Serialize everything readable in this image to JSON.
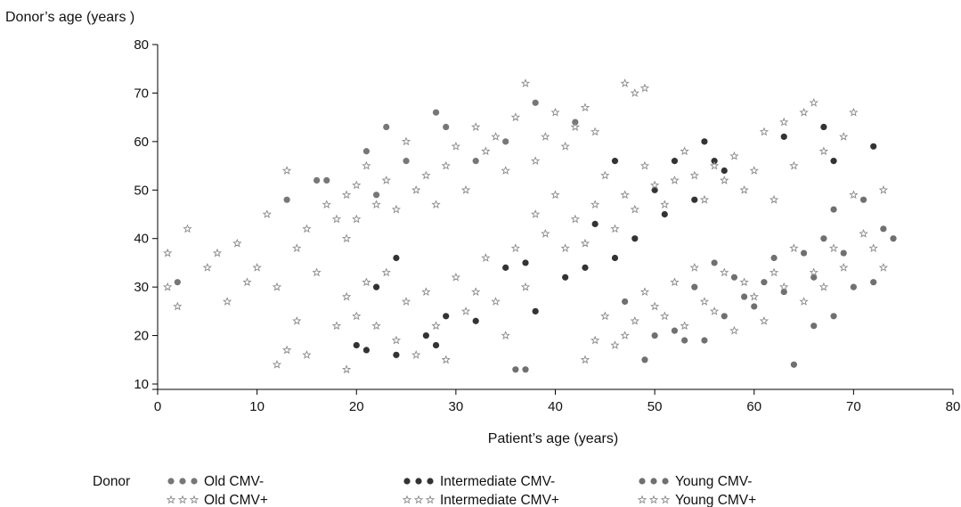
{
  "chart_data": {
    "type": "scatter",
    "title": "",
    "ylabel": "Donor’s age (years )",
    "xlabel": "Patient’s age (years)",
    "xlim": [
      0,
      80
    ],
    "ylim": [
      10,
      80
    ],
    "xticks": [
      0,
      10,
      20,
      30,
      40,
      50,
      60,
      70,
      80
    ],
    "yticks": [
      10,
      20,
      30,
      40,
      50,
      60,
      70,
      80
    ],
    "grid": false,
    "legend": {
      "placement": "bottom",
      "title": "Donor",
      "entries": [
        "Old CMV-",
        "Intermediate CMV-",
        "Young CMV-",
        "Old CMV+",
        "Intermediate CMV+",
        "Young CMV+"
      ]
    },
    "colors": {
      "old": "#777777",
      "intermediate": "#333333",
      "young": "#707070",
      "axis": "#000000"
    },
    "series": [
      {
        "name": "Old CMV-",
        "marker": "circle",
        "points": [
          [
            2,
            31
          ],
          [
            13,
            48
          ],
          [
            16,
            52
          ],
          [
            17,
            52
          ],
          [
            21,
            58
          ],
          [
            22,
            49
          ],
          [
            23,
            63
          ],
          [
            25,
            56
          ],
          [
            28,
            66
          ],
          [
            29,
            63
          ],
          [
            32,
            56
          ],
          [
            35,
            60
          ],
          [
            38,
            68
          ],
          [
            42,
            64
          ]
        ]
      },
      {
        "name": "Intermediate CMV-",
        "marker": "circle",
        "points": [
          [
            20,
            18
          ],
          [
            21,
            17
          ],
          [
            22,
            30
          ],
          [
            24,
            16
          ],
          [
            24,
            36
          ],
          [
            27,
            20
          ],
          [
            28,
            18
          ],
          [
            29,
            24
          ],
          [
            32,
            23
          ],
          [
            35,
            34
          ],
          [
            37,
            35
          ],
          [
            38,
            25
          ],
          [
            41,
            32
          ],
          [
            43,
            34
          ],
          [
            44,
            43
          ],
          [
            46,
            56
          ],
          [
            46,
            36
          ],
          [
            48,
            40
          ],
          [
            50,
            50
          ],
          [
            51,
            45
          ],
          [
            52,
            56
          ],
          [
            54,
            48
          ],
          [
            55,
            60
          ],
          [
            56,
            56
          ],
          [
            57,
            54
          ],
          [
            63,
            61
          ],
          [
            67,
            63
          ],
          [
            68,
            56
          ],
          [
            72,
            59
          ]
        ]
      },
      {
        "name": "Young CMV-",
        "marker": "circle",
        "points": [
          [
            36,
            13
          ],
          [
            37,
            13
          ],
          [
            47,
            27
          ],
          [
            49,
            15
          ],
          [
            50,
            20
          ],
          [
            52,
            21
          ],
          [
            53,
            19
          ],
          [
            54,
            30
          ],
          [
            55,
            19
          ],
          [
            56,
            35
          ],
          [
            57,
            24
          ],
          [
            58,
            32
          ],
          [
            59,
            28
          ],
          [
            60,
            26
          ],
          [
            61,
            31
          ],
          [
            62,
            36
          ],
          [
            63,
            29
          ],
          [
            64,
            14
          ],
          [
            65,
            37
          ],
          [
            66,
            22
          ],
          [
            66,
            32
          ],
          [
            67,
            40
          ],
          [
            68,
            24
          ],
          [
            68,
            46
          ],
          [
            69,
            37
          ],
          [
            70,
            30
          ],
          [
            71,
            48
          ],
          [
            72,
            31
          ],
          [
            73,
            42
          ],
          [
            74,
            40
          ]
        ]
      },
      {
        "name": "Old CMV+",
        "marker": "star",
        "points": [
          [
            1,
            37
          ],
          [
            1,
            30
          ],
          [
            2,
            26
          ],
          [
            3,
            42
          ],
          [
            5,
            34
          ],
          [
            6,
            37
          ],
          [
            7,
            27
          ],
          [
            8,
            39
          ],
          [
            9,
            31
          ],
          [
            10,
            34
          ],
          [
            11,
            45
          ],
          [
            12,
            30
          ],
          [
            13,
            54
          ],
          [
            14,
            38
          ],
          [
            15,
            42
          ],
          [
            16,
            33
          ],
          [
            17,
            47
          ],
          [
            18,
            44
          ],
          [
            19,
            40
          ],
          [
            19,
            49
          ],
          [
            20,
            51
          ],
          [
            20,
            44
          ],
          [
            21,
            55
          ],
          [
            22,
            47
          ],
          [
            23,
            52
          ],
          [
            24,
            46
          ],
          [
            25,
            60
          ],
          [
            26,
            50
          ],
          [
            27,
            53
          ],
          [
            28,
            47
          ],
          [
            29,
            55
          ],
          [
            30,
            59
          ],
          [
            31,
            50
          ],
          [
            32,
            63
          ],
          [
            33,
            58
          ],
          [
            34,
            61
          ],
          [
            35,
            54
          ],
          [
            36,
            65
          ],
          [
            37,
            72
          ],
          [
            38,
            56
          ],
          [
            39,
            61
          ],
          [
            40,
            66
          ],
          [
            41,
            59
          ],
          [
            42,
            63
          ],
          [
            43,
            67
          ],
          [
            44,
            62
          ],
          [
            47,
            72
          ],
          [
            48,
            70
          ],
          [
            49,
            71
          ]
        ]
      },
      {
        "name": "Intermediate CMV+",
        "marker": "star",
        "points": [
          [
            12,
            14
          ],
          [
            13,
            17
          ],
          [
            14,
            23
          ],
          [
            15,
            16
          ],
          [
            18,
            22
          ],
          [
            19,
            13
          ],
          [
            19,
            28
          ],
          [
            20,
            24
          ],
          [
            21,
            31
          ],
          [
            22,
            22
          ],
          [
            23,
            33
          ],
          [
            24,
            19
          ],
          [
            25,
            27
          ],
          [
            26,
            16
          ],
          [
            27,
            29
          ],
          [
            28,
            22
          ],
          [
            29,
            15
          ],
          [
            30,
            32
          ],
          [
            31,
            25
          ],
          [
            32,
            29
          ],
          [
            33,
            36
          ],
          [
            34,
            27
          ],
          [
            35,
            20
          ],
          [
            36,
            38
          ],
          [
            37,
            30
          ],
          [
            38,
            45
          ],
          [
            39,
            41
          ],
          [
            40,
            49
          ],
          [
            41,
            38
          ],
          [
            42,
            44
          ],
          [
            43,
            39
          ],
          [
            44,
            47
          ],
          [
            45,
            53
          ],
          [
            46,
            42
          ],
          [
            47,
            49
          ],
          [
            48,
            46
          ],
          [
            49,
            55
          ],
          [
            50,
            51
          ],
          [
            51,
            47
          ],
          [
            52,
            52
          ],
          [
            53,
            58
          ],
          [
            54,
            53
          ],
          [
            55,
            48
          ],
          [
            56,
            55
          ],
          [
            57,
            52
          ],
          [
            58,
            57
          ],
          [
            59,
            50
          ],
          [
            60,
            54
          ],
          [
            61,
            62
          ],
          [
            62,
            48
          ],
          [
            63,
            64
          ],
          [
            64,
            55
          ],
          [
            65,
            66
          ],
          [
            66,
            68
          ],
          [
            67,
            58
          ],
          [
            69,
            61
          ],
          [
            70,
            66
          ]
        ]
      },
      {
        "name": "Young CMV+",
        "marker": "star",
        "points": [
          [
            43,
            15
          ],
          [
            44,
            19
          ],
          [
            45,
            24
          ],
          [
            46,
            18
          ],
          [
            47,
            20
          ],
          [
            48,
            23
          ],
          [
            49,
            29
          ],
          [
            50,
            26
          ],
          [
            51,
            24
          ],
          [
            52,
            31
          ],
          [
            53,
            22
          ],
          [
            54,
            34
          ],
          [
            55,
            27
          ],
          [
            56,
            25
          ],
          [
            57,
            33
          ],
          [
            58,
            21
          ],
          [
            59,
            31
          ],
          [
            60,
            28
          ],
          [
            61,
            23
          ],
          [
            62,
            33
          ],
          [
            63,
            30
          ],
          [
            64,
            38
          ],
          [
            65,
            27
          ],
          [
            66,
            33
          ],
          [
            67,
            30
          ],
          [
            68,
            38
          ],
          [
            69,
            34
          ],
          [
            70,
            49
          ],
          [
            71,
            41
          ],
          [
            72,
            38
          ],
          [
            73,
            34
          ],
          [
            73,
            50
          ]
        ]
      }
    ]
  }
}
